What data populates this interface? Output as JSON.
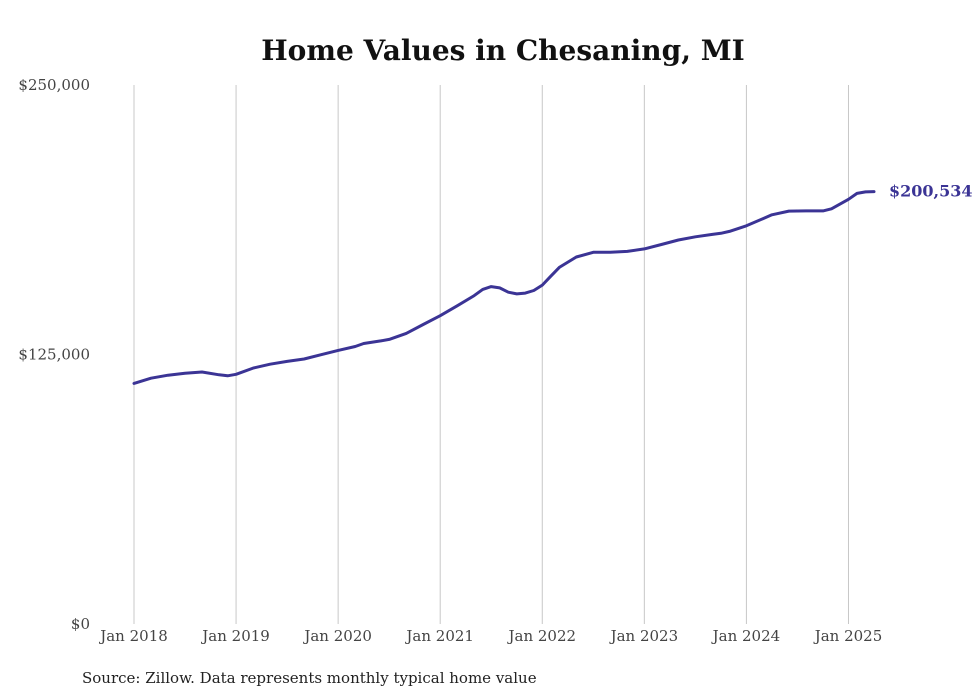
{
  "chart_data": {
    "type": "line",
    "title": "Home Values in Chesaning, MI",
    "source": "Source: Zillow. Data represents monthly typical home value",
    "end_label": "$200,534",
    "line_color": "#3b3495",
    "ylim": [
      0,
      250000
    ],
    "y_ticks": [
      {
        "value": 0,
        "label": "$0"
      },
      {
        "value": 125000,
        "label": "$125,000"
      },
      {
        "value": 250000,
        "label": "$250,000"
      }
    ],
    "x_ticks": [
      {
        "value": 2018,
        "label": "Jan 2018"
      },
      {
        "value": 2019,
        "label": "Jan 2019"
      },
      {
        "value": 2020,
        "label": "Jan 2020"
      },
      {
        "value": 2021,
        "label": "Jan 2021"
      },
      {
        "value": 2022,
        "label": "Jan 2022"
      },
      {
        "value": 2023,
        "label": "Jan 2023"
      },
      {
        "value": 2024,
        "label": "Jan 2024"
      },
      {
        "value": 2025,
        "label": "Jan 2025"
      }
    ],
    "xlim": [
      2018,
      2025.25
    ],
    "grid": "vertical",
    "series": [
      {
        "values": [
          [
            2018.0,
            111600
          ],
          [
            2018.1667,
            114000
          ],
          [
            2018.3333,
            115400
          ],
          [
            2018.5,
            116300
          ],
          [
            2018.6667,
            116900
          ],
          [
            2018.8333,
            115600
          ],
          [
            2018.9167,
            115100
          ],
          [
            2019.0,
            115800
          ],
          [
            2019.1667,
            118700
          ],
          [
            2019.3333,
            120500
          ],
          [
            2019.5,
            121800
          ],
          [
            2019.6667,
            122900
          ],
          [
            2019.8333,
            124900
          ],
          [
            2020.0,
            126900
          ],
          [
            2020.1667,
            128700
          ],
          [
            2020.25,
            130100
          ],
          [
            2020.4167,
            131300
          ],
          [
            2020.5,
            132000
          ],
          [
            2020.6667,
            134800
          ],
          [
            2020.8333,
            138900
          ],
          [
            2021.0,
            143000
          ],
          [
            2021.1667,
            147600
          ],
          [
            2021.3333,
            152300
          ],
          [
            2021.4167,
            155200
          ],
          [
            2021.5,
            156500
          ],
          [
            2021.5833,
            155900
          ],
          [
            2021.6667,
            153900
          ],
          [
            2021.75,
            153100
          ],
          [
            2021.8333,
            153500
          ],
          [
            2021.9167,
            154700
          ],
          [
            2022.0,
            157200
          ],
          [
            2022.0833,
            161300
          ],
          [
            2022.1667,
            165400
          ],
          [
            2022.3333,
            170200
          ],
          [
            2022.5,
            172400
          ],
          [
            2022.6667,
            172400
          ],
          [
            2022.8333,
            172800
          ],
          [
            2023.0,
            174000
          ],
          [
            2023.1667,
            176000
          ],
          [
            2023.3333,
            178100
          ],
          [
            2023.5,
            179600
          ],
          [
            2023.6667,
            180700
          ],
          [
            2023.75,
            181200
          ],
          [
            2023.8333,
            182100
          ],
          [
            2024.0,
            184700
          ],
          [
            2024.1667,
            188100
          ],
          [
            2024.25,
            189800
          ],
          [
            2024.4167,
            191500
          ],
          [
            2024.5833,
            191600
          ],
          [
            2024.75,
            191600
          ],
          [
            2024.8333,
            192600
          ],
          [
            2025.0,
            197000
          ],
          [
            2025.0833,
            199700
          ],
          [
            2025.1667,
            200400
          ],
          [
            2025.25,
            200534
          ]
        ]
      }
    ]
  }
}
